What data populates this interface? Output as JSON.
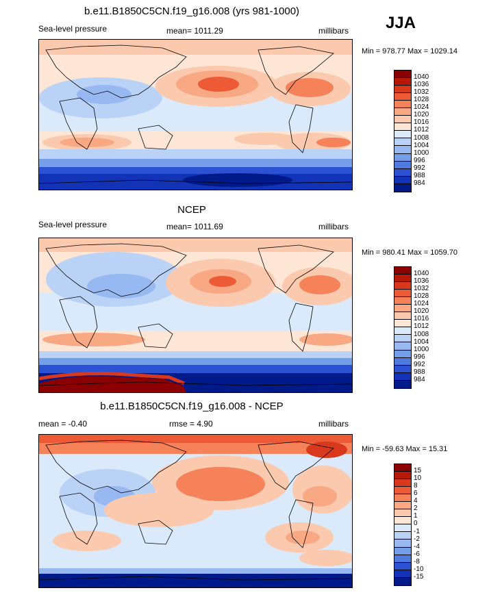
{
  "season": "JJA",
  "panels": [
    {
      "title": "b.e11.B1850C5CN.f19_g16.008 (yrs 981-1000)",
      "left_label": "Sea-level pressure",
      "center_label": "mean= 1011.29",
      "right_label": "millibars",
      "minmax": "Min = 978.77 Max = 1029.14",
      "colorbar": {
        "labels": [
          "1040",
          "1036",
          "1032",
          "1028",
          "1024",
          "1020",
          "1016",
          "1012",
          "1008",
          "1004",
          "1000",
          "996",
          "992",
          "988",
          "984"
        ],
        "colors": [
          "#8b0000",
          "#b71a08",
          "#d8381c",
          "#ec5a36",
          "#f6825a",
          "#f9a884",
          "#fbc9ad",
          "#fde6d6",
          "#dbeafb",
          "#b9d2f6",
          "#97b8f0",
          "#759ee9",
          "#4f7ae0",
          "#2b52d2",
          "#1233b8",
          "#001a8a"
        ]
      }
    },
    {
      "title": "NCEP",
      "left_label": "Sea-level pressure",
      "center_label": "mean= 1011.69",
      "right_label": "millibars",
      "minmax": "Min = 980.41 Max = 1059.70",
      "colorbar": {
        "labels": [
          "1040",
          "1036",
          "1032",
          "1028",
          "1024",
          "1020",
          "1016",
          "1012",
          "1008",
          "1004",
          "1000",
          "996",
          "992",
          "988",
          "984"
        ],
        "colors": [
          "#8b0000",
          "#b71a08",
          "#d8381c",
          "#ec5a36",
          "#f6825a",
          "#f9a884",
          "#fbc9ad",
          "#fde6d6",
          "#dbeafb",
          "#b9d2f6",
          "#97b8f0",
          "#759ee9",
          "#4f7ae0",
          "#2b52d2",
          "#1233b8",
          "#001a8a"
        ]
      }
    },
    {
      "title": "b.e11.B1850C5CN.f19_g16.008 - NCEP",
      "left_label": "mean = -0.40",
      "center_label": "rmse = 4.90",
      "right_label": "millibars",
      "minmax": "Min = -59.63 Max = 15.31",
      "colorbar": {
        "labels": [
          "15",
          "10",
          "8",
          "6",
          "4",
          "2",
          "1",
          "0",
          "-1",
          "-2",
          "-4",
          "-6",
          "-8",
          "-10",
          "-15"
        ],
        "colors": [
          "#8b0000",
          "#b71a08",
          "#d8381c",
          "#ec5a36",
          "#f6825a",
          "#f9a884",
          "#fbc9ad",
          "#fde6d6",
          "#dbeafb",
          "#b9d2f6",
          "#97b8f0",
          "#759ee9",
          "#4f7ae0",
          "#2b52d2",
          "#1233b8",
          "#001a8a"
        ]
      }
    }
  ]
}
